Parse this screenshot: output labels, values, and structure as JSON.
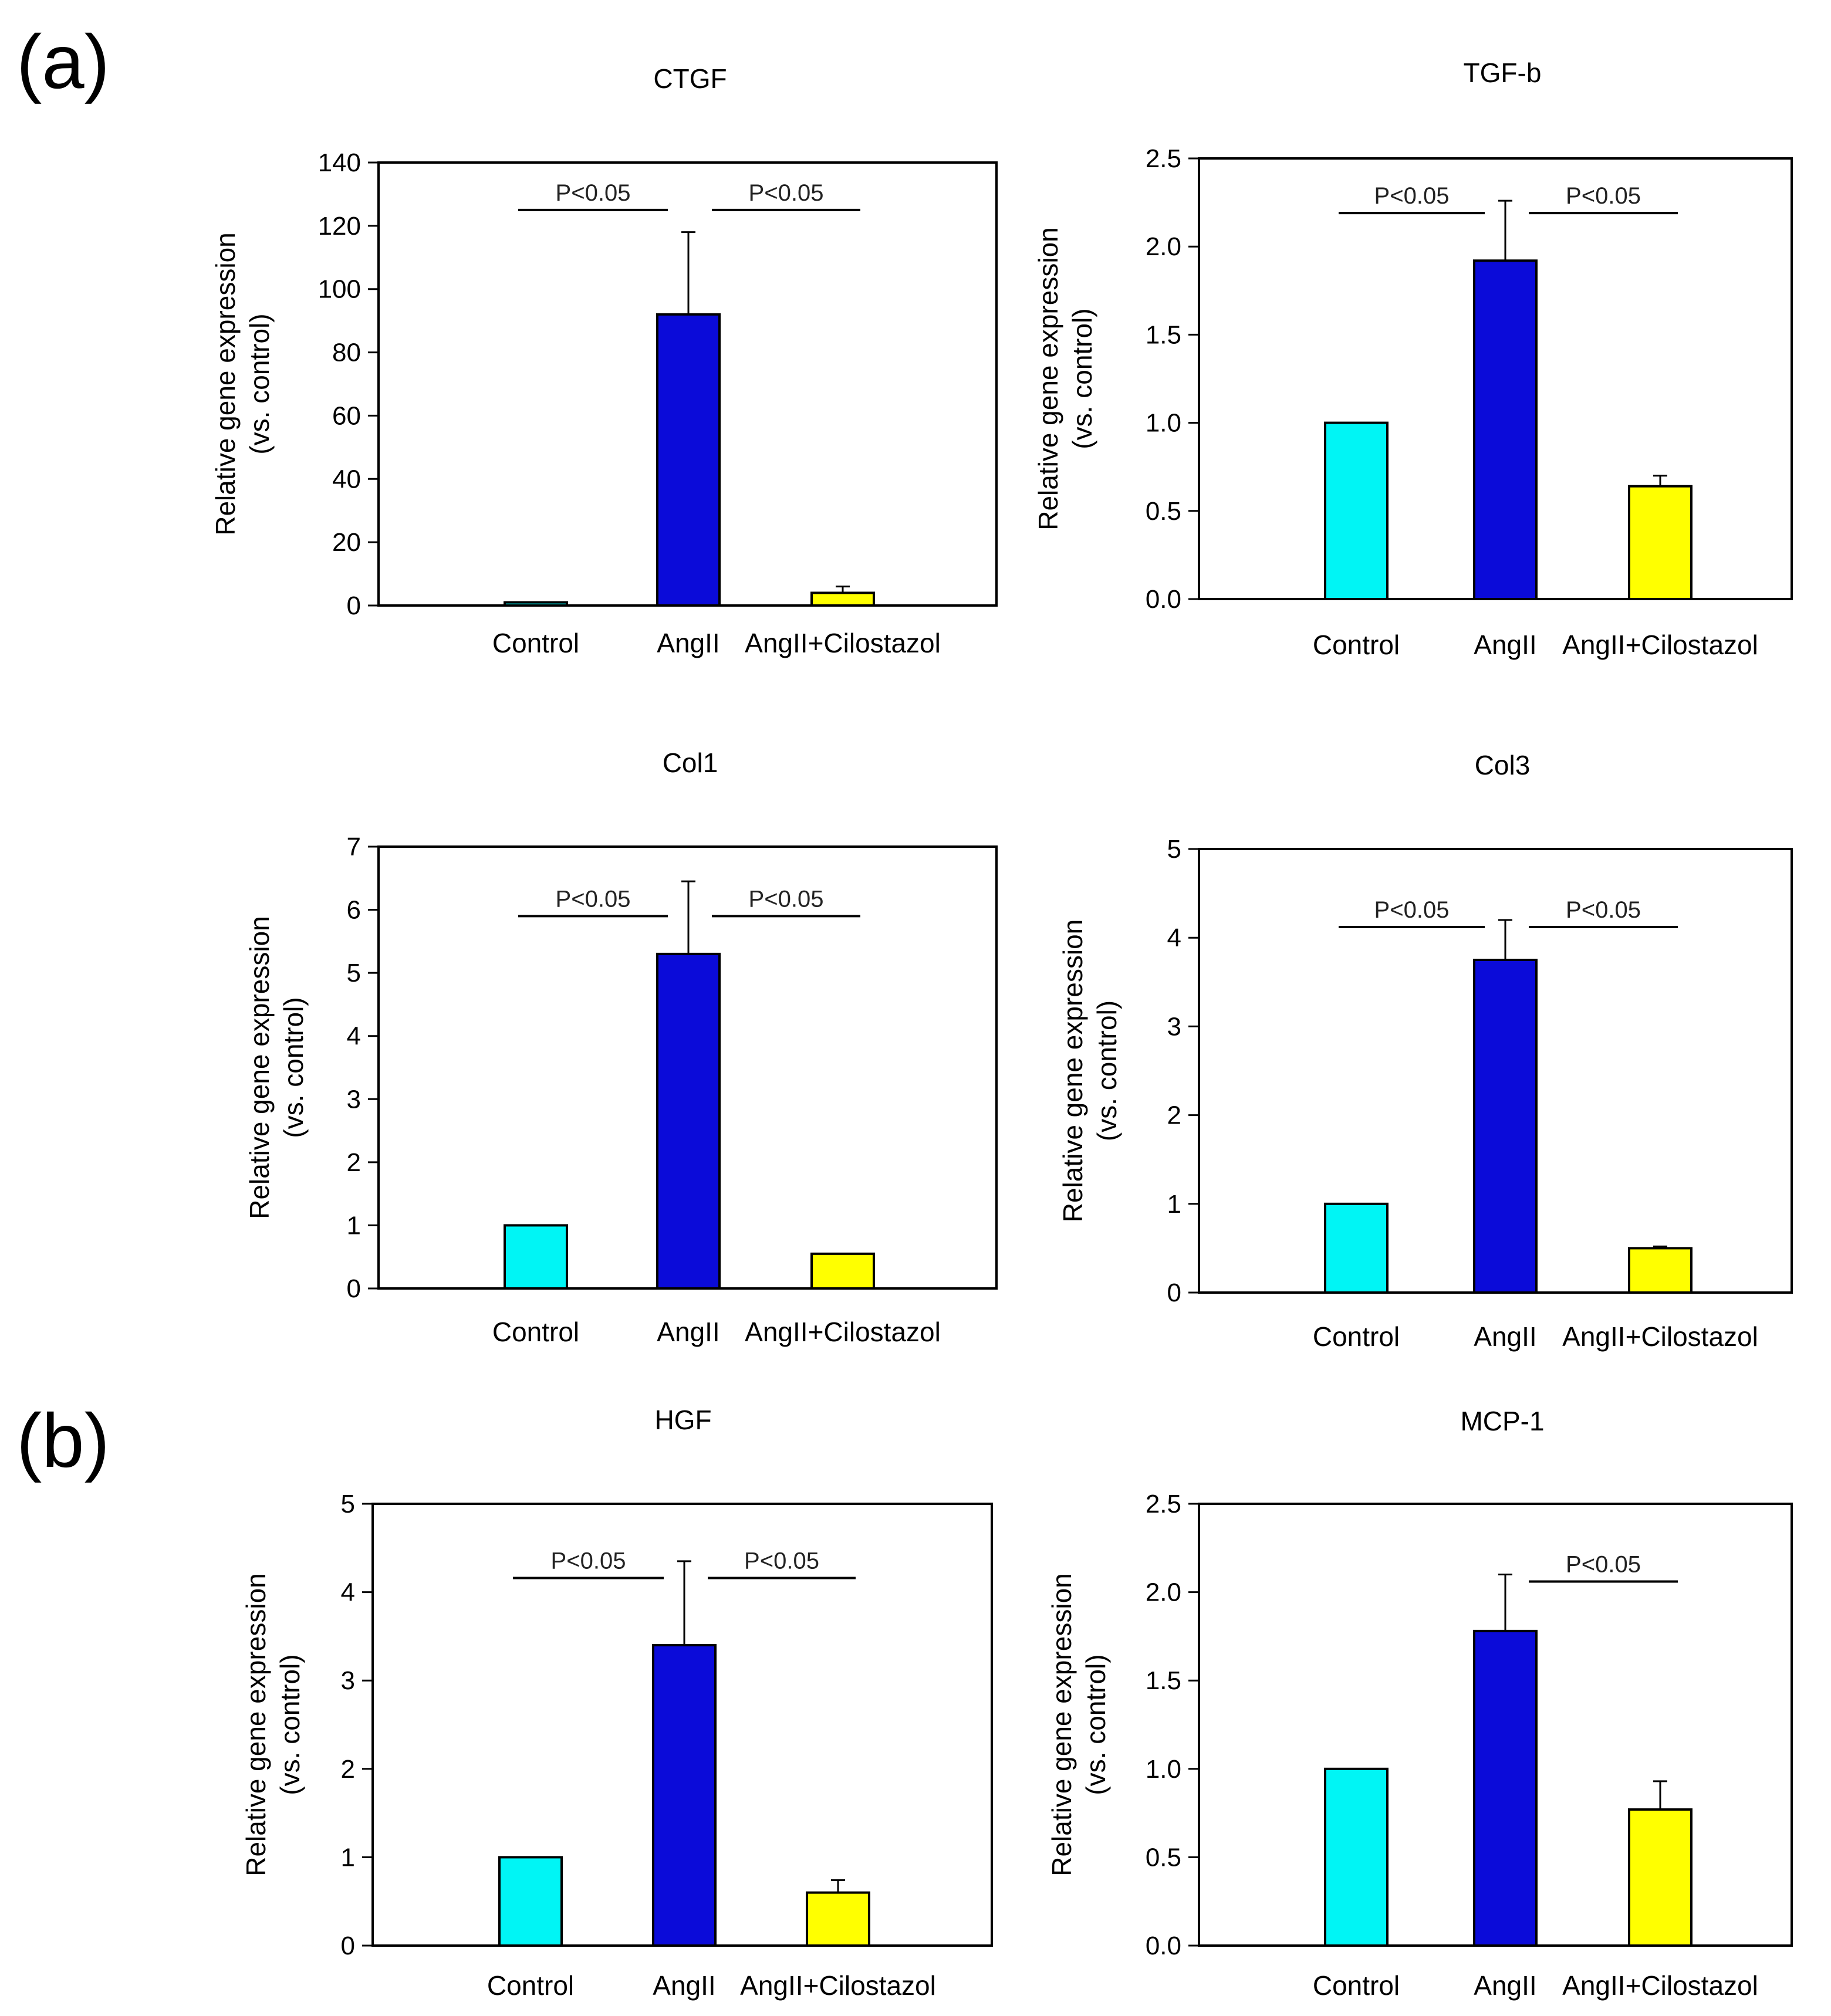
{
  "panel_labels": [
    "(a)",
    "(b)"
  ],
  "chart_data": [
    {
      "type": "bar",
      "title": "CTGF",
      "categories": [
        "Control",
        "AngII",
        "AngII+Cilostazol"
      ],
      "values": [
        1,
        92,
        4
      ],
      "errors": [
        0,
        26,
        2
      ],
      "ylabel": "Relative gene expression",
      "ylabel2": "(vs. control)",
      "ylim": [
        0,
        140
      ],
      "yticks": [
        0,
        20,
        40,
        60,
        80,
        100,
        120,
        140
      ],
      "significance": [
        {
          "from": 0,
          "to": 1,
          "label": "P<0.05",
          "level": 125
        },
        {
          "from": 1,
          "to": 2,
          "label": "P<0.05",
          "level": 125
        }
      ]
    },
    {
      "type": "bar",
      "title": "TGF-b",
      "categories": [
        "Control",
        "AngII",
        "AngII+Cilostazol"
      ],
      "values": [
        1.0,
        1.92,
        0.64
      ],
      "errors": [
        0,
        0.34,
        0.06
      ],
      "ylabel": "Relative gene expression",
      "ylabel2": "(vs. control)",
      "ylim": [
        0,
        2.5
      ],
      "yticks": [
        "0.0",
        "0.5",
        "1.0",
        "1.5",
        "2.0",
        "2.5"
      ],
      "significance": [
        {
          "from": 0,
          "to": 1,
          "label": "P<0.05",
          "level": 2.19
        },
        {
          "from": 1,
          "to": 2,
          "label": "P<0.05",
          "level": 2.19
        }
      ]
    },
    {
      "type": "bar",
      "title": "Col1",
      "categories": [
        "Control",
        "AngII",
        "AngII+Cilostazol"
      ],
      "values": [
        1.0,
        5.3,
        0.55
      ],
      "errors": [
        0,
        1.15,
        0
      ],
      "ylabel": "Relative gene expression",
      "ylabel2": "(vs. control)",
      "ylim": [
        0,
        7
      ],
      "yticks": [
        0,
        1,
        2,
        3,
        4,
        5,
        6,
        7
      ],
      "significance": [
        {
          "from": 0,
          "to": 1,
          "label": "P<0.05",
          "level": 5.9
        },
        {
          "from": 1,
          "to": 2,
          "label": "P<0.05",
          "level": 5.9
        }
      ]
    },
    {
      "type": "bar",
      "title": "Col3",
      "categories": [
        "Control",
        "AngII",
        "AngII+Cilostazol"
      ],
      "values": [
        1.0,
        3.75,
        0.5
      ],
      "errors": [
        0,
        0.45,
        0.02
      ],
      "ylabel": "Relative gene expression",
      "ylabel2": "(vs. control)",
      "ylim": [
        0,
        5
      ],
      "yticks": [
        0,
        1,
        2,
        3,
        4,
        5
      ],
      "significance": [
        {
          "from": 0,
          "to": 1,
          "label": "P<0.05",
          "level": 4.12
        },
        {
          "from": 1,
          "to": 2,
          "label": "P<0.05",
          "level": 4.12
        }
      ]
    },
    {
      "type": "bar",
      "title": "HGF",
      "categories": [
        "Control",
        "AngII",
        "AngII+Cilostazol"
      ],
      "values": [
        1.0,
        3.4,
        0.6
      ],
      "errors": [
        0,
        0.95,
        0.14
      ],
      "ylabel": "Relative gene expression",
      "ylabel2": "(vs. control)",
      "ylim": [
        0,
        5
      ],
      "yticks": [
        0,
        1,
        2,
        3,
        4,
        5
      ],
      "significance": [
        {
          "from": 0,
          "to": 1,
          "label": "P<0.05",
          "level": 4.16
        },
        {
          "from": 1,
          "to": 2,
          "label": "P<0.05",
          "level": 4.16
        }
      ]
    },
    {
      "type": "bar",
      "title": "MCP-1",
      "categories": [
        "Control",
        "AngII",
        "AngII+Cilostazol"
      ],
      "values": [
        1.0,
        1.78,
        0.77
      ],
      "errors": [
        0,
        0.32,
        0.16
      ],
      "ylabel": "Relative gene expression",
      "ylabel2": "(vs. control)",
      "ylim": [
        0,
        2.5
      ],
      "yticks": [
        "0.0",
        "0.5",
        "1.0",
        "1.5",
        "2.0",
        "2.5"
      ],
      "significance": [
        {
          "from": 1,
          "to": 2,
          "label": "P<0.05",
          "level": 2.06
        }
      ]
    }
  ],
  "colors": {
    "control": "#00f5f5",
    "angii": "#0b0bd9",
    "cilostazol": "#ffff00",
    "axis": "#000000"
  }
}
